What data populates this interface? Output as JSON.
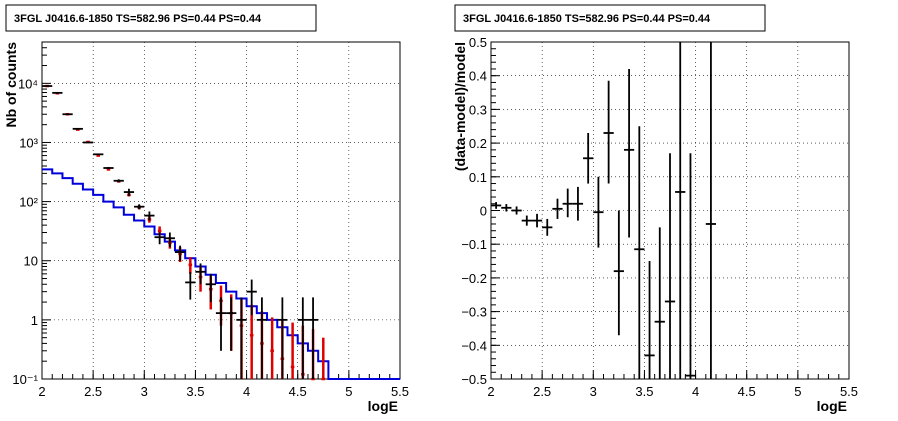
{
  "chart_data": [
    {
      "type": "scatter",
      "title": "3FGL J0416.6-1850 TS=582.96 PS=0.44 PS=0.44",
      "xlabel": "logE",
      "ylabel": "Nb of counts",
      "xlim": [
        2,
        5.5
      ],
      "ylim": [
        0.1,
        50000
      ],
      "yscale": "log",
      "grid": true,
      "xticks": [
        "2",
        "2.5",
        "3",
        "3.5",
        "4",
        "4.5",
        "5",
        "5.5"
      ],
      "yticks": [
        "10⁻¹",
        "1",
        "10",
        "10²",
        "10³",
        "10⁴"
      ],
      "bin_width": 0.1,
      "series": [
        {
          "role": "data",
          "color": "#000000",
          "points": [
            {
              "x": 2.05,
              "y": 9000,
              "lo": 9000,
              "hi": 9000
            },
            {
              "x": 2.15,
              "y": 6900,
              "lo": 6900,
              "hi": 6900
            },
            {
              "x": 2.25,
              "y": 3000,
              "lo": 3000,
              "hi": 3000
            },
            {
              "x": 2.35,
              "y": 1700,
              "lo": 1700,
              "hi": 1700
            },
            {
              "x": 2.45,
              "y": 1000,
              "lo": 1000,
              "hi": 1000
            },
            {
              "x": 2.55,
              "y": 630,
              "lo": 630,
              "hi": 630
            },
            {
              "x": 2.65,
              "y": 370,
              "lo": 355,
              "hi": 385
            },
            {
              "x": 2.75,
              "y": 225,
              "lo": 212,
              "hi": 238
            },
            {
              "x": 2.85,
              "y": 145,
              "lo": 125,
              "hi": 165
            },
            {
              "x": 2.95,
              "y": 82,
              "lo": 74,
              "hi": 90
            },
            {
              "x": 3.05,
              "y": 58,
              "lo": 48,
              "hi": 68
            },
            {
              "x": 3.15,
              "y": 25,
              "lo": 19,
              "hi": 30
            },
            {
              "x": 3.25,
              "y": 24,
              "lo": 17,
              "hi": 30
            },
            {
              "x": 3.35,
              "y": 14,
              "lo": 10,
              "hi": 18
            },
            {
              "x": 3.45,
              "y": 4.3,
              "lo": 2.2,
              "hi": 6.4
            },
            {
              "x": 3.55,
              "y": 6.5,
              "lo": 4.0,
              "hi": 9.0
            },
            {
              "x": 3.65,
              "y": 4.0,
              "lo": 2.0,
              "hi": 6.0
            },
            {
              "x": 3.75,
              "y": 1.3,
              "lo": 0.3,
              "hi": 2.4
            },
            {
              "x": 3.85,
              "y": 1.3,
              "lo": 0.3,
              "hi": 2.4
            },
            {
              "x": 3.95,
              "y": 1.0,
              "lo": 0.1,
              "hi": 2.4
            },
            {
              "x": 4.05,
              "y": 3.0,
              "lo": 1.2,
              "hi": 4.8
            },
            {
              "x": 4.15,
              "y": 1.0,
              "lo": 0.1,
              "hi": 2.4
            },
            {
              "x": 4.35,
              "y": 1.0,
              "lo": 0.1,
              "hi": 2.4
            },
            {
              "x": 4.55,
              "y": 1.0,
              "lo": 0.1,
              "hi": 2.4
            },
            {
              "x": 4.65,
              "y": 1.0,
              "lo": 0.1,
              "hi": 2.4
            }
          ]
        },
        {
          "role": "model-points",
          "color": "#dd0000",
          "points": [
            {
              "x": 2.05,
              "y": 9000,
              "lo": 9000,
              "hi": 9000
            },
            {
              "x": 2.15,
              "y": 6800,
              "lo": 6800,
              "hi": 6800
            },
            {
              "x": 2.25,
              "y": 3000,
              "lo": 3000,
              "hi": 3000
            },
            {
              "x": 2.35,
              "y": 1650,
              "lo": 1650,
              "hi": 1650
            },
            {
              "x": 2.45,
              "y": 1020,
              "lo": 1020,
              "hi": 1020
            },
            {
              "x": 2.55,
              "y": 600,
              "lo": 600,
              "hi": 600
            },
            {
              "x": 2.65,
              "y": 350,
              "lo": 350,
              "hi": 350
            },
            {
              "x": 2.75,
              "y": 220,
              "lo": 210,
              "hi": 230
            },
            {
              "x": 2.85,
              "y": 130,
              "lo": 122,
              "hi": 138
            },
            {
              "x": 2.95,
              "y": 80,
              "lo": 74,
              "hi": 87
            },
            {
              "x": 3.05,
              "y": 50,
              "lo": 44,
              "hi": 57
            },
            {
              "x": 3.15,
              "y": 32,
              "lo": 27,
              "hi": 38
            },
            {
              "x": 3.25,
              "y": 20,
              "lo": 16,
              "hi": 25
            },
            {
              "x": 3.35,
              "y": 13,
              "lo": 9.5,
              "hi": 17
            },
            {
              "x": 3.45,
              "y": 8.5,
              "lo": 6,
              "hi": 11.5
            },
            {
              "x": 3.55,
              "y": 5.3,
              "lo": 3,
              "hi": 8
            },
            {
              "x": 3.65,
              "y": 3.3,
              "lo": 1.5,
              "hi": 5.5
            },
            {
              "x": 3.75,
              "y": 2.1,
              "lo": 0.8,
              "hi": 3.8
            },
            {
              "x": 3.85,
              "y": 1.3,
              "lo": 0.3,
              "hi": 2.7
            },
            {
              "x": 3.95,
              "y": 0.8,
              "lo": 0.1,
              "hi": 2.2
            },
            {
              "x": 4.05,
              "y": 0.55,
              "lo": 0.1,
              "hi": 1.8
            },
            {
              "x": 4.15,
              "y": 0.4,
              "lo": 0.1,
              "hi": 1.4
            },
            {
              "x": 4.25,
              "y": 0.3,
              "lo": 0.1,
              "hi": 1.1
            },
            {
              "x": 4.35,
              "y": 0.22,
              "lo": 0.1,
              "hi": 1.0
            },
            {
              "x": 4.45,
              "y": 0.16,
              "lo": 0.1,
              "hi": 0.9
            },
            {
              "x": 4.55,
              "y": 0.12,
              "lo": 0.1,
              "hi": 0.8
            },
            {
              "x": 4.65,
              "y": 0.1,
              "lo": 0.1,
              "hi": 0.7
            },
            {
              "x": 4.75,
              "y": 0.1,
              "lo": 0.1,
              "hi": 0.5
            }
          ]
        },
        {
          "role": "model-histogram",
          "color": "#0000dd",
          "x_start": 2.0,
          "x_end": 5.5,
          "values": [
            350,
            300,
            250,
            200,
            160,
            130,
            100,
            80,
            60,
            48,
            38,
            28,
            21,
            15,
            11,
            8,
            5.8,
            4.2,
            3.0,
            2.3,
            1.7,
            1.3,
            1.0,
            0.75,
            0.55,
            0.4,
            0.3,
            0.2,
            0.1,
            0.1,
            0.1,
            0.1,
            0.1,
            0.1,
            0.1
          ]
        }
      ]
    },
    {
      "type": "scatter",
      "title": "3FGL J0416.6-1850 TS=582.96 PS=0.44 PS=0.44",
      "xlabel": "logE",
      "ylabel": "(data-model)/model",
      "xlim": [
        2,
        5.5
      ],
      "ylim": [
        -0.5,
        0.5
      ],
      "grid": true,
      "xticks": [
        "2",
        "2.5",
        "3",
        "3.5",
        "4",
        "4.5",
        "5",
        "5.5"
      ],
      "yticks": [
        "−0.5",
        "−0.4",
        "−0.3",
        "−0.2",
        "−0.1",
        "0",
        "0.1",
        "0.2",
        "0.3",
        "0.4",
        "0.5"
      ],
      "bin_width": 0.1,
      "series": [
        {
          "role": "residuals",
          "color": "#000000",
          "points": [
            {
              "x": 2.05,
              "y": 0.015,
              "lo": 0.005,
              "hi": 0.025
            },
            {
              "x": 2.15,
              "y": 0.008,
              "lo": -0.003,
              "hi": 0.019
            },
            {
              "x": 2.25,
              "y": 0.0,
              "lo": -0.012,
              "hi": 0.012
            },
            {
              "x": 2.35,
              "y": -0.03,
              "lo": -0.045,
              "hi": -0.015
            },
            {
              "x": 2.45,
              "y": -0.03,
              "lo": -0.05,
              "hi": -0.01
            },
            {
              "x": 2.55,
              "y": -0.05,
              "lo": -0.075,
              "hi": -0.025
            },
            {
              "x": 2.65,
              "y": 0.005,
              "lo": -0.025,
              "hi": 0.035
            },
            {
              "x": 2.75,
              "y": 0.02,
              "lo": -0.02,
              "hi": 0.065
            },
            {
              "x": 2.85,
              "y": 0.02,
              "lo": -0.03,
              "hi": 0.07
            },
            {
              "x": 2.95,
              "y": 0.155,
              "lo": 0.08,
              "hi": 0.23
            },
            {
              "x": 3.05,
              "y": -0.005,
              "lo": -0.11,
              "hi": 0.1
            },
            {
              "x": 3.15,
              "y": 0.23,
              "lo": 0.08,
              "hi": 0.385
            },
            {
              "x": 3.25,
              "y": -0.18,
              "lo": -0.37,
              "hi": 0.0
            },
            {
              "x": 3.35,
              "y": 0.18,
              "lo": -0.08,
              "hi": 0.42
            },
            {
              "x": 3.45,
              "y": -0.115,
              "lo": -0.5,
              "hi": 0.25
            },
            {
              "x": 3.55,
              "y": -0.43,
              "lo": -0.5,
              "hi": -0.15
            },
            {
              "x": 3.65,
              "y": -0.33,
              "lo": -0.5,
              "hi": -0.05
            },
            {
              "x": 3.75,
              "y": -0.27,
              "lo": -0.5,
              "hi": 0.17
            },
            {
              "x": 3.85,
              "y": 0.055,
              "lo": -0.5,
              "hi": 0.5
            },
            {
              "x": 3.95,
              "y": -0.49,
              "lo": -0.5,
              "hi": 0.17
            },
            {
              "x": 4.15,
              "y": -0.04,
              "lo": -0.5,
              "hi": 0.5
            }
          ]
        }
      ]
    }
  ]
}
